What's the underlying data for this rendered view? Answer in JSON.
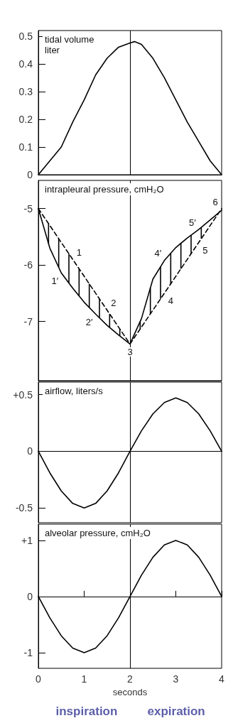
{
  "chart_data": [
    {
      "type": "line",
      "title": "tidal volume\nliter",
      "x": [
        0,
        0.25,
        0.5,
        0.75,
        1,
        1.25,
        1.5,
        1.75,
        2,
        2.1,
        2.25,
        2.5,
        2.75,
        3,
        3.25,
        3.5,
        3.75,
        4
      ],
      "series": [
        {
          "color": "#000000",
          "values": [
            0,
            0.05,
            0.1,
            0.19,
            0.27,
            0.36,
            0.42,
            0.46,
            0.475,
            0.48,
            0.47,
            0.42,
            0.35,
            0.27,
            0.19,
            0.12,
            0.05,
            0
          ]
        }
      ],
      "xlim": [
        0,
        4
      ],
      "ylim": [
        0,
        0.52
      ],
      "yticks": [
        0,
        0.1,
        0.2,
        0.3,
        0.4,
        0.5
      ],
      "tick_labels": "y",
      "grid": false,
      "marker": "none",
      "ref_lines": [
        {
          "axis": "x",
          "value": 2
        }
      ]
    },
    {
      "type": "line",
      "title": "intrapleural pressure, cmH₂O",
      "x": [
        0,
        0.25,
        0.5,
        0.75,
        1,
        1.25,
        1.5,
        1.75,
        2,
        2.25,
        2.5,
        2.75,
        3,
        3.25,
        3.5,
        3.75,
        4
      ],
      "series": [
        {
          "color": "#000000",
          "line_style": "solid",
          "values": [
            -5,
            -5.7,
            -6.14,
            -6.41,
            -6.66,
            -6.87,
            -7.07,
            -7.24,
            -7.4,
            -6.95,
            -6.25,
            -5.92,
            -5.69,
            -5.52,
            -5.37,
            -5.2,
            -5.03
          ]
        },
        {
          "color": "#000000",
          "line_style": "dashed",
          "x": [
            0,
            2,
            4
          ],
          "values": [
            -5,
            -7.4,
            -5
          ]
        }
      ],
      "xlim": [
        0,
        4
      ],
      "ylim": [
        -8.05,
        -4.5
      ],
      "yticks": [
        -5,
        -6,
        -7
      ],
      "tick_labels": "y",
      "grid": false,
      "marker": "none",
      "ref_lines": [
        {
          "axis": "x",
          "value": 2
        }
      ],
      "annotations": [
        {
          "text": "1",
          "x": 0.75,
          "y": -5.9
        },
        {
          "text": "2",
          "x": 1.5,
          "y": -6.8
        },
        {
          "text": "1′",
          "x": 0.5,
          "y": -6.14
        },
        {
          "text": "2′",
          "x": 1.25,
          "y": -6.87
        },
        {
          "text": "3",
          "x": 2,
          "y": -7.4
        },
        {
          "text": "4",
          "x": 2.75,
          "y": -6.5
        },
        {
          "text": "4′",
          "x": 2.75,
          "y": -5.92
        },
        {
          "text": "5",
          "x": 3.5,
          "y": -5.6
        },
        {
          "text": "5′",
          "x": 3.5,
          "y": -5.37
        },
        {
          "text": "6",
          "x": 4,
          "y": -5.03
        }
      ]
    },
    {
      "type": "line",
      "title": "airflow, liters/s",
      "x": [
        0,
        0.25,
        0.5,
        0.75,
        1,
        1.25,
        1.5,
        1.75,
        2,
        2.25,
        2.5,
        2.75,
        3,
        3.25,
        3.5,
        3.75,
        4
      ],
      "series": [
        {
          "color": "#000000",
          "values": [
            0,
            -0.19,
            -0.35,
            -0.46,
            -0.5,
            -0.46,
            -0.35,
            -0.19,
            0,
            0.18,
            0.33,
            0.43,
            0.47,
            0.43,
            0.33,
            0.18,
            0
          ]
        }
      ],
      "xlim": [
        0,
        4
      ],
      "ylim": [
        -0.63,
        0.61
      ],
      "yticks": [
        {
          "value": 0.5,
          "label": "+0.5"
        },
        0,
        -0.5
      ],
      "tick_labels": "y",
      "grid": false,
      "marker": "none",
      "ref_lines": [
        {
          "axis": "x",
          "value": 2
        },
        {
          "axis": "y",
          "value": 0
        }
      ]
    },
    {
      "type": "line",
      "title": "alveolar pressure, cmH₂O",
      "xlabel": "seconds",
      "x": [
        0,
        0.25,
        0.5,
        0.75,
        1,
        1.25,
        1.5,
        1.75,
        2,
        2.25,
        2.5,
        2.75,
        3,
        3.25,
        3.5,
        3.75,
        4
      ],
      "series": [
        {
          "color": "#000000",
          "values": [
            0,
            -0.38,
            -0.7,
            -0.92,
            -1,
            -0.92,
            -0.7,
            -0.38,
            0,
            0.38,
            0.7,
            0.92,
            1,
            0.92,
            0.7,
            0.38,
            0
          ]
        }
      ],
      "xlim": [
        0,
        4
      ],
      "xticks": [
        0,
        1,
        2,
        3,
        4
      ],
      "ylim": [
        -1.28,
        1.29
      ],
      "yticks": [
        {
          "value": 1,
          "label": "+1"
        },
        0,
        -1
      ],
      "grid": false,
      "marker": "none",
      "ref_lines": [
        {
          "axis": "x",
          "value": 2
        },
        {
          "axis": "y",
          "value": 0
        }
      ],
      "annotations": [
        "inspiration",
        "expiration"
      ]
    }
  ]
}
